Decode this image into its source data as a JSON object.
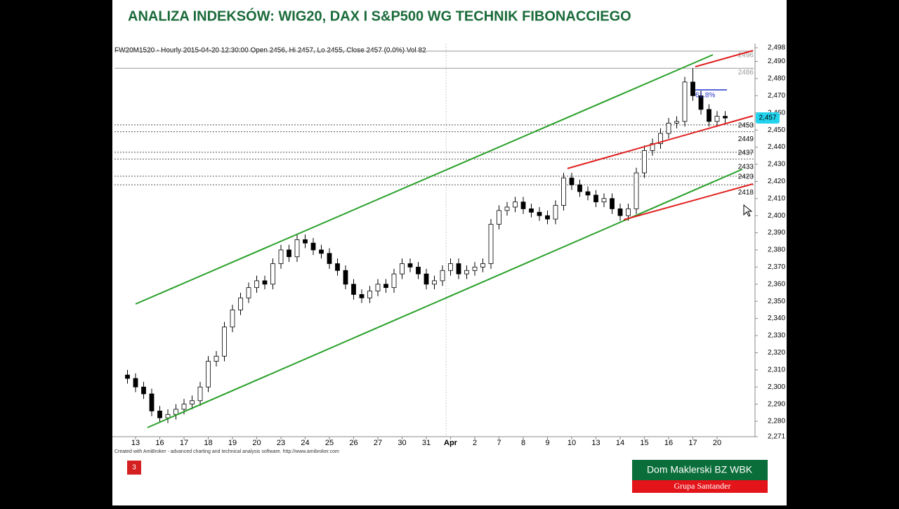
{
  "slide": {
    "title": "ANALIZA INDEKSÓW: WIG20, DAX I S&P500 WG TECHNIK FIBONACCIEGO",
    "number": "3",
    "logo_top": "Dom Maklerski BZ WBK",
    "logo_bottom": "Grupa Santander"
  },
  "chart_data": {
    "type": "candlestick",
    "header": "FW20M1520 - Hourly 2015-04-20 12:30:00 Open 2456, Hi 2457, Lo 2455, Close 2457 (0.0%) Vol 82",
    "footnote": "Created with AmiBroker - advanced charting and technical analysis software. http://www.amibroker.com",
    "fib_label": "61.8%",
    "categories": [
      null,
      "13",
      null,
      null,
      "16",
      null,
      null,
      "17",
      null,
      null,
      "18",
      null,
      null,
      "19",
      null,
      null,
      "20",
      null,
      null,
      "23",
      null,
      null,
      "24",
      null,
      null,
      "25",
      null,
      null,
      "26",
      null,
      null,
      "27",
      null,
      null,
      "30",
      null,
      null,
      "31",
      null,
      null,
      "Apr",
      null,
      null,
      "2",
      null,
      null,
      "7",
      null,
      null,
      "8",
      null,
      null,
      "9",
      null,
      null,
      "10",
      null,
      null,
      "13",
      null,
      null,
      "14",
      null,
      null,
      "15",
      null,
      null,
      "16",
      null,
      null,
      "17",
      null,
      null,
      "20",
      null
    ],
    "open": [
      2307,
      2305,
      2300,
      2296,
      2286,
      2282,
      2284,
      2287,
      2290,
      2292,
      2300,
      2315,
      2318,
      2335,
      2345,
      2352,
      2358,
      2362,
      2360,
      2372,
      2380,
      2376,
      2386,
      2384,
      2380,
      2378,
      2372,
      2368,
      2360,
      2354,
      2352,
      2356,
      2360,
      2358,
      2366,
      2372,
      2370,
      2366,
      2360,
      2362,
      2368,
      2372,
      2366,
      2368,
      2370,
      2372,
      2395,
      2403,
      2405,
      2408,
      2404,
      2402,
      2400,
      2398,
      2406,
      2422,
      2418,
      2414,
      2412,
      2408,
      2410,
      2404,
      2400,
      2404,
      2425,
      2438,
      2442,
      2448,
      2454,
      2455,
      2478,
      2470,
      2462,
      2455,
      2458
    ],
    "high": [
      2310,
      2308,
      2303,
      2299,
      2289,
      2287,
      2290,
      2293,
      2295,
      2303,
      2318,
      2321,
      2338,
      2348,
      2355,
      2361,
      2365,
      2365,
      2375,
      2383,
      2383,
      2389,
      2389,
      2387,
      2383,
      2381,
      2375,
      2371,
      2363,
      2357,
      2359,
      2363,
      2363,
      2369,
      2375,
      2375,
      2373,
      2369,
      2365,
      2371,
      2375,
      2375,
      2371,
      2373,
      2375,
      2398,
      2406,
      2408,
      2411,
      2411,
      2407,
      2405,
      2403,
      2409,
      2425,
      2425,
      2421,
      2417,
      2415,
      2413,
      2413,
      2407,
      2407,
      2428,
      2441,
      2445,
      2451,
      2457,
      2458,
      2481,
      2486,
      2473,
      2465,
      2461,
      2461
    ],
    "low": [
      2302,
      2297,
      2293,
      2283,
      2279,
      2279,
      2281,
      2284,
      2287,
      2289,
      2297,
      2312,
      2315,
      2332,
      2342,
      2349,
      2355,
      2357,
      2357,
      2369,
      2373,
      2373,
      2381,
      2377,
      2375,
      2369,
      2365,
      2357,
      2351,
      2349,
      2349,
      2353,
      2355,
      2355,
      2363,
      2367,
      2363,
      2357,
      2357,
      2359,
      2365,
      2363,
      2363,
      2365,
      2367,
      2369,
      2392,
      2400,
      2402,
      2401,
      2399,
      2397,
      2395,
      2395,
      2403,
      2415,
      2411,
      2409,
      2405,
      2405,
      2401,
      2397,
      2397,
      2401,
      2422,
      2435,
      2439,
      2445,
      2451,
      2452,
      2467,
      2459,
      2452,
      2452,
      2454
    ],
    "close": [
      2305,
      2300,
      2296,
      2286,
      2282,
      2284,
      2287,
      2290,
      2292,
      2300,
      2315,
      2318,
      2335,
      2345,
      2352,
      2358,
      2362,
      2360,
      2372,
      2380,
      2376,
      2386,
      2384,
      2380,
      2378,
      2372,
      2368,
      2360,
      2354,
      2352,
      2356,
      2360,
      2358,
      2366,
      2372,
      2370,
      2366,
      2360,
      2362,
      2368,
      2372,
      2366,
      2368,
      2370,
      2372,
      2395,
      2403,
      2405,
      2408,
      2404,
      2402,
      2400,
      2398,
      2406,
      2422,
      2418,
      2414,
      2412,
      2408,
      2410,
      2404,
      2400,
      2404,
      2425,
      2438,
      2442,
      2448,
      2454,
      2455,
      2478,
      2470,
      2462,
      2455,
      2458,
      2457
    ],
    "levels": [
      2496,
      2486,
      2453,
      2449,
      2437,
      2433,
      2423,
      2418
    ],
    "last_price": {
      "value": 2457,
      "label": "2,457"
    },
    "ylim": [
      2271,
      2498
    ],
    "yticks": [
      {
        "value": 2271,
        "label": "2,271"
      },
      {
        "value": 2280,
        "label": "2,280"
      },
      {
        "value": 2290,
        "label": "2,290"
      },
      {
        "value": 2300,
        "label": "2,300"
      },
      {
        "value": 2310,
        "label": "2,310"
      },
      {
        "value": 2320,
        "label": "2,320"
      },
      {
        "value": 2330,
        "label": "2,330"
      },
      {
        "value": 2340,
        "label": "2,340"
      },
      {
        "value": 2350,
        "label": "2,350"
      },
      {
        "value": 2360,
        "label": "2,360"
      },
      {
        "value": 2370,
        "label": "2,370"
      },
      {
        "value": 2380,
        "label": "2,380"
      },
      {
        "value": 2390,
        "label": "2,390"
      },
      {
        "value": 2400,
        "label": "2,400"
      },
      {
        "value": 2410,
        "label": "2,410"
      },
      {
        "value": 2420,
        "label": "2,420"
      },
      {
        "value": 2430,
        "label": "2,430"
      },
      {
        "value": 2440,
        "label": "2,440"
      },
      {
        "value": 2450,
        "label": "2,450"
      },
      {
        "value": 2460,
        "label": "2,460"
      },
      {
        "value": 2470,
        "label": "2,470"
      },
      {
        "value": 2480,
        "label": "2,480"
      },
      {
        "value": 2490,
        "label": "2,490"
      },
      {
        "value": 2498,
        "label": "2,498"
      }
    ],
    "grid": false
  }
}
